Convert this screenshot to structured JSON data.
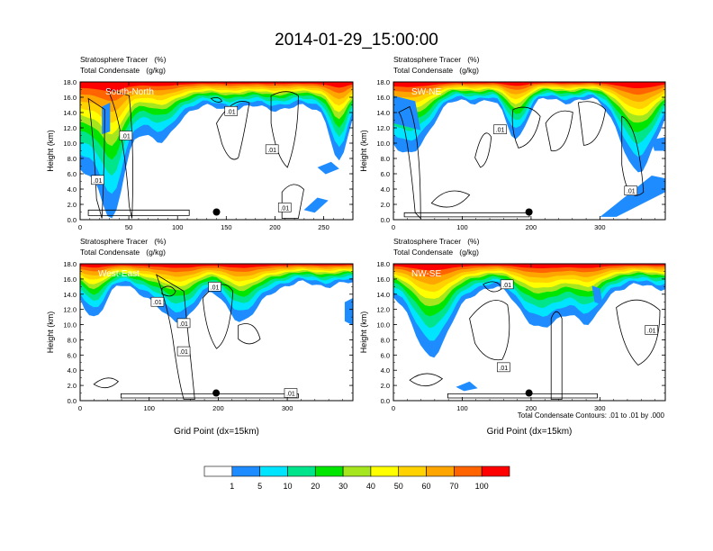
{
  "title": "2014-01-29_15:00:00",
  "palette": [
    "#ffffff",
    "#1e8cff",
    "#00e5ff",
    "#00e58c",
    "#00e600",
    "#a5e61e",
    "#ffff00",
    "#ffd200",
    "#ffa500",
    "#ff6400",
    "#ff0000"
  ],
  "colorbar_labels": [
    "1",
    "5",
    "10",
    "20",
    "30",
    "40",
    "50",
    "60",
    "70",
    "100"
  ],
  "contour_note": "Total Condensate Contours: .01 to .01 by .000",
  "chart_data": [
    {
      "type": "heatmap",
      "name": "South-North",
      "label": "South-North",
      "field_label": "Stratosphere Tracer   (%)",
      "contour_label": "Total Condensate   (g/kg)",
      "ylabel": "Height (km)",
      "xlabel": "",
      "xlim": [
        0,
        280
      ],
      "ylim": [
        0,
        18
      ],
      "x_ticks": [
        0,
        50,
        100,
        150,
        200,
        250
      ],
      "y_ticks": [
        "0.0",
        "2.0",
        "4.0",
        "6.0",
        "8.0",
        "10.0",
        "12.0",
        "14.0",
        "16.0",
        "18.0"
      ],
      "marker": [
        140,
        1.0
      ],
      "contour_labels": [
        {
          "text": ".01",
          "x": 18,
          "y": 5.2
        },
        {
          "text": ".01",
          "x": 47,
          "y": 11.0
        },
        {
          "text": ".01",
          "x": 155,
          "y": 14.2
        },
        {
          "text": ".01",
          "x": 197,
          "y": 9.2
        },
        {
          "text": ".01",
          "x": 210,
          "y": 1.6
        }
      ]
    },
    {
      "type": "heatmap",
      "name": "SW-NE",
      "label": "SW-NE",
      "field_label": "Stratosphere Tracer   (%)",
      "contour_label": "Total Condensate   (g/kg)",
      "ylabel": "Height (km)",
      "xlabel": "",
      "xlim": [
        0,
        395
      ],
      "ylim": [
        0,
        18
      ],
      "x_ticks": [
        0,
        100,
        200,
        300
      ],
      "y_ticks": [
        "0.0",
        "2.0",
        "4.0",
        "6.0",
        "8.0",
        "10.0",
        "12.0",
        "14.0",
        "16.0",
        "18.0"
      ],
      "marker": [
        197,
        1.0
      ],
      "contour_labels": [
        {
          "text": ".01",
          "x": 155,
          "y": 11.8
        },
        {
          "text": ".01",
          "x": 345,
          "y": 3.8
        }
      ]
    },
    {
      "type": "heatmap",
      "name": "West-East",
      "label": "West-East",
      "field_label": "Stratosphere Tracer   (%)",
      "contour_label": "Total Condensate   (g/kg)",
      "ylabel": "Height (km)",
      "xlabel": "Grid Point (dx=15km)",
      "xlim": [
        0,
        395
      ],
      "ylim": [
        0,
        18
      ],
      "x_ticks": [
        0,
        100,
        200,
        300
      ],
      "y_ticks": [
        "0.0",
        "2.0",
        "4.0",
        "6.0",
        "8.0",
        "10.0",
        "12.0",
        "14.0",
        "16.0",
        "18.0"
      ],
      "marker": [
        197,
        1.0
      ],
      "contour_labels": [
        {
          "text": ".01",
          "x": 112,
          "y": 13.0
        },
        {
          "text": ".01",
          "x": 150,
          "y": 10.2
        },
        {
          "text": ".01",
          "x": 150,
          "y": 6.5
        },
        {
          "text": ".01",
          "x": 195,
          "y": 15.0
        },
        {
          "text": ".01",
          "x": 305,
          "y": 1.0
        }
      ]
    },
    {
      "type": "heatmap",
      "name": "NW-SE",
      "label": "NW-SE",
      "field_label": "Stratosphere Tracer   (%)",
      "contour_label": "Total Condensate   (g/kg)",
      "ylabel": "Height (km)",
      "xlabel": "Grid Point (dx=15km)",
      "xlim": [
        0,
        395
      ],
      "ylim": [
        0,
        18
      ],
      "x_ticks": [
        0,
        100,
        200,
        300
      ],
      "y_ticks": [
        "0.0",
        "2.0",
        "4.0",
        "6.0",
        "8.0",
        "10.0",
        "12.0",
        "14.0",
        "16.0",
        "18.0"
      ],
      "marker": [
        197,
        1.0
      ],
      "contour_labels": [
        {
          "text": ".01",
          "x": 165,
          "y": 15.3
        },
        {
          "text": ".01",
          "x": 160,
          "y": 4.4
        },
        {
          "text": ".01",
          "x": 375,
          "y": 9.3
        }
      ]
    }
  ]
}
